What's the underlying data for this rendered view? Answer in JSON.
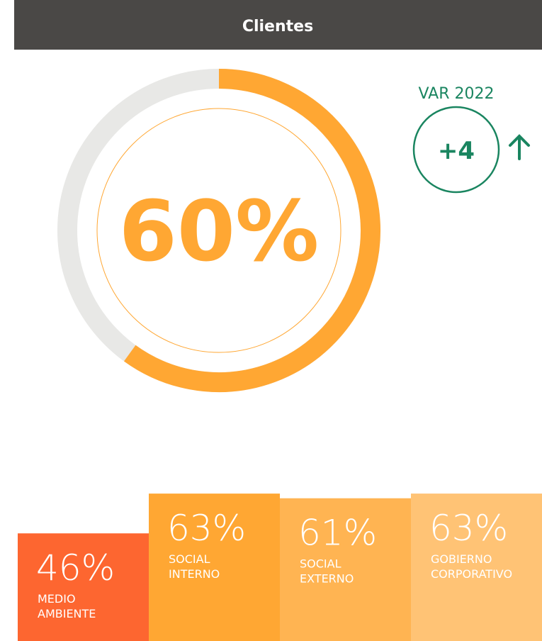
{
  "header": {
    "title": "Clientes"
  },
  "variation": {
    "label": "VAR 2022",
    "value": 4,
    "value_label": "+4",
    "color": "#1a8560"
  },
  "chart_data": [
    {
      "type": "gauge",
      "values": [
        60
      ],
      "value_labels": [
        "60%"
      ],
      "color": "#ffa733",
      "track_color": "#e8e8e6",
      "ylim": [
        0,
        100
      ]
    },
    {
      "type": "bar",
      "categories": [
        "MEDIO AMBIENTE",
        "SOCIAL INTERNO",
        "SOCIAL EXTERNO",
        "GOBIERNO CORPORATIVO"
      ],
      "values": [
        46,
        63,
        61,
        63
      ],
      "value_labels": [
        "46%",
        "63%",
        "61%",
        "63%"
      ],
      "colors": [
        "#fd6630",
        "#ffa733",
        "#ffb452",
        "#ffc375"
      ],
      "ylim": [
        0,
        100
      ]
    }
  ]
}
